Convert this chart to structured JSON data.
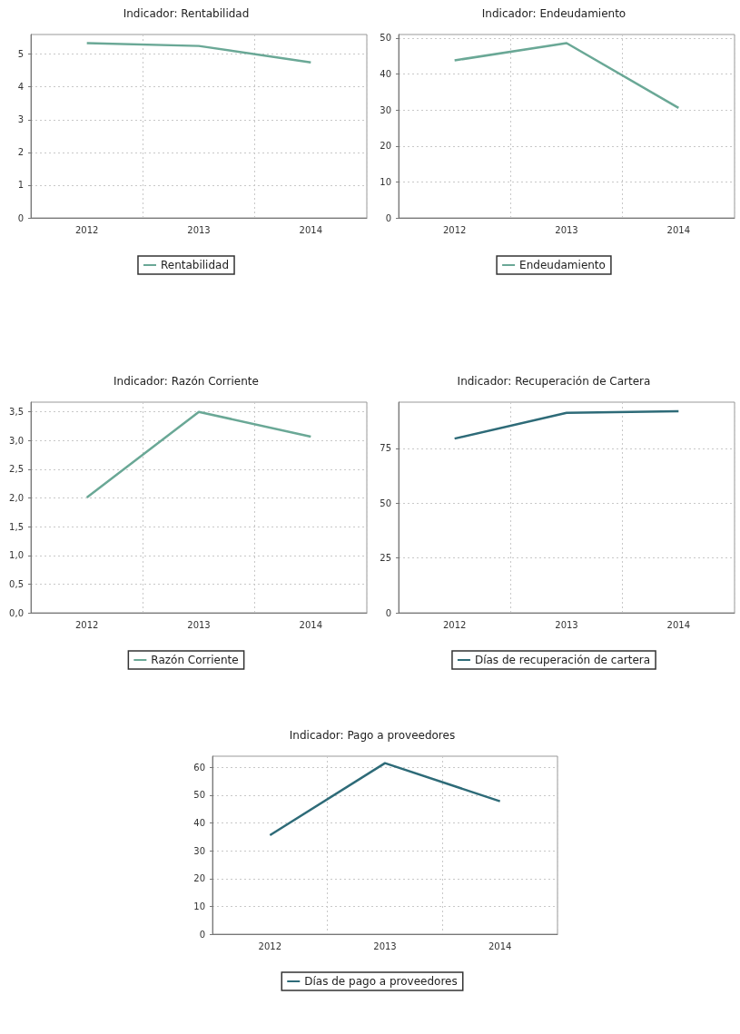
{
  "chart_data": [
    {
      "type": "line",
      "title": "Indicador: Rentabilidad",
      "categories": [
        "2012",
        "2013",
        "2014"
      ],
      "series": [
        {
          "name": "Rentabilidad",
          "color": "#6aa896",
          "values": [
            5.34,
            5.25,
            4.75
          ]
        }
      ],
      "ylim": [
        0,
        5.6
      ],
      "yticks": [
        0,
        1,
        2,
        3,
        4,
        5
      ],
      "grid": true,
      "legend": "bottom",
      "marker": "none"
    },
    {
      "type": "line",
      "title": "Indicador: Endeudamiento",
      "categories": [
        "2012",
        "2013",
        "2014"
      ],
      "series": [
        {
          "name": "Endeudamiento",
          "color": "#6aa896",
          "values": [
            43.8,
            48.6,
            30.6
          ]
        }
      ],
      "ylim": [
        0,
        51
      ],
      "yticks": [
        0,
        10,
        20,
        30,
        40,
        50
      ],
      "grid": true,
      "legend": "bottom",
      "marker": "none"
    },
    {
      "type": "line",
      "title": "Indicador: Razón Corriente",
      "categories": [
        "2012",
        "2013",
        "2014"
      ],
      "series": [
        {
          "name": "Razón Corriente",
          "color": "#6aa896",
          "values": [
            2.01,
            3.5,
            3.07
          ]
        }
      ],
      "ylim": [
        0,
        3.67
      ],
      "yticks": [
        {
          "value": 0,
          "label": "0,0"
        },
        {
          "value": 0.5,
          "label": "0,5"
        },
        {
          "value": 1,
          "label": "1,0"
        },
        {
          "value": 1.5,
          "label": "1,5"
        },
        {
          "value": 2,
          "label": "2,0"
        },
        {
          "value": 2.5,
          "label": "2,5"
        },
        {
          "value": 3,
          "label": "3,0"
        },
        {
          "value": 3.5,
          "label": "3,5"
        }
      ],
      "grid": true,
      "legend": "bottom",
      "marker": "none"
    },
    {
      "type": "line",
      "title": "Indicador: Recuperación de Cartera",
      "categories": [
        "2012",
        "2013",
        "2014"
      ],
      "series": [
        {
          "name": "Días de recuperación de cartera",
          "color": "#2e6b78",
          "values": [
            79.4,
            91.1,
            91.9
          ]
        }
      ],
      "ylim": [
        0,
        96
      ],
      "yticks": [
        0,
        25,
        50,
        75
      ],
      "grid": true,
      "legend": "bottom",
      "marker": "none"
    },
    {
      "type": "line",
      "title": "Indicador: Pago a proveedores",
      "categories": [
        "2012",
        "2013",
        "2014"
      ],
      "series": [
        {
          "name": "Días de pago a proveedores",
          "color": "#2e6b78",
          "values": [
            35.6,
            61.5,
            47.8
          ]
        }
      ],
      "ylim": [
        0,
        64
      ],
      "yticks": [
        0,
        10,
        20,
        30,
        40,
        50,
        60
      ],
      "grid": true,
      "legend": "bottom",
      "marker": "none"
    }
  ]
}
